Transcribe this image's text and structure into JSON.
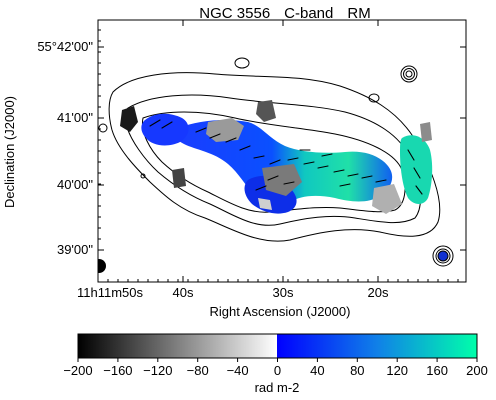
{
  "title": {
    "object": "NGC 3556",
    "band": "C-band",
    "quantity": "RM"
  },
  "chart_data": {
    "type": "heatmap",
    "title": "NGC 3556   C-band   RM",
    "xlabel": "Right Ascension (J2000)",
    "ylabel": "Declination (J2000)",
    "x_tick_labels": [
      "11h11m50s",
      "40s",
      "30s",
      "20s"
    ],
    "y_tick_labels": [
      "55°42'00\"",
      "41'00\"",
      "40'00\"",
      "39'00\""
    ],
    "colorbar": {
      "label": "rad m-2",
      "range": [
        -200,
        200
      ],
      "tick_values": [
        -200,
        -160,
        -120,
        -80,
        -40,
        0,
        40,
        80,
        120,
        160,
        200
      ],
      "tick_labels": [
        "−200",
        "−160",
        "−120",
        "−80",
        "−40",
        "0",
        "40",
        "80",
        "120",
        "160",
        "200"
      ],
      "colormap_negative": [
        "#000000",
        "#ffffff"
      ],
      "colormap_positive": [
        "#0000ff",
        "#00ffaa"
      ]
    },
    "overlays": [
      "total-intensity contours",
      "magnetic field orientation vectors",
      "beam ellipse"
    ]
  },
  "colors": {
    "frame": "#000000",
    "contour": "#000000",
    "beam": "#000000"
  }
}
